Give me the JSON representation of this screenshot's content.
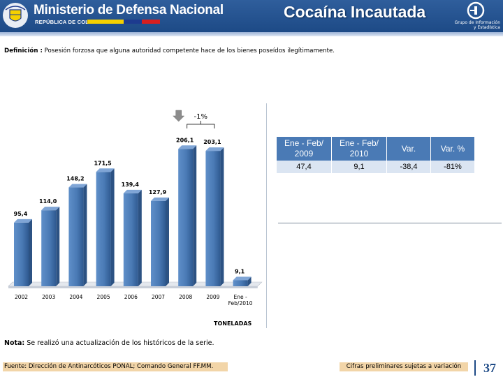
{
  "header": {
    "ministry": "Ministerio de Defensa Nacional",
    "republic": "REPÚBLICA DE COLOMBIA",
    "title": "Cocaína Incautada",
    "group_line1": "Grupo de Información",
    "group_line2": "y Estadística",
    "colors": {
      "primary": "#2f5e9c",
      "flag_yellow": "#f5d000",
      "flag_blue": "#1d3b8f",
      "flag_red": "#d81e1e"
    }
  },
  "definition": {
    "label": "Definición :",
    "text": "Posesión forzosa que alguna autoridad competente hace de los bienes poseídos ilegítimamente."
  },
  "chart_data": {
    "type": "bar",
    "categories": [
      "2002",
      "2003",
      "2004",
      "2005",
      "2006",
      "2007",
      "2008",
      "2009",
      "Ene - Feb/2010"
    ],
    "values": [
      95.4,
      114.0,
      148.2,
      171.5,
      139.4,
      127.9,
      206.1,
      203.1,
      9.1
    ],
    "value_labels": [
      "95,4",
      "114,0",
      "148,2",
      "171,5",
      "139,4",
      "127,9",
      "206,1",
      "203,1",
      "9,1"
    ],
    "tick_labels": [
      "2002",
      "2003",
      "2004",
      "2005",
      "2006",
      "2007",
      "2008",
      "2009",
      "Ene -",
      "Feb/2010"
    ],
    "ylim": [
      0,
      220
    ],
    "unit": "TONELADAS",
    "annotation": "-1%",
    "bar_color": "#4a7ab5",
    "grid": false,
    "legend": "none"
  },
  "summary_table": {
    "headers": [
      "Ene - Feb/ 2009",
      "Ene - Feb/ 2010",
      "Var.",
      "Var. %"
    ],
    "values": [
      "47,4",
      "9,1",
      "-38,4",
      "-81%"
    ]
  },
  "note": {
    "label": "Nota:",
    "text": "Se realizó una actualización de los históricos de la serie."
  },
  "footer": {
    "source": "Fuente: Dirección de Antinarcóticos PONAL; Comando General FF.MM.",
    "preliminary": "Cifras preliminares sujetas a variación",
    "page_number": "37"
  }
}
